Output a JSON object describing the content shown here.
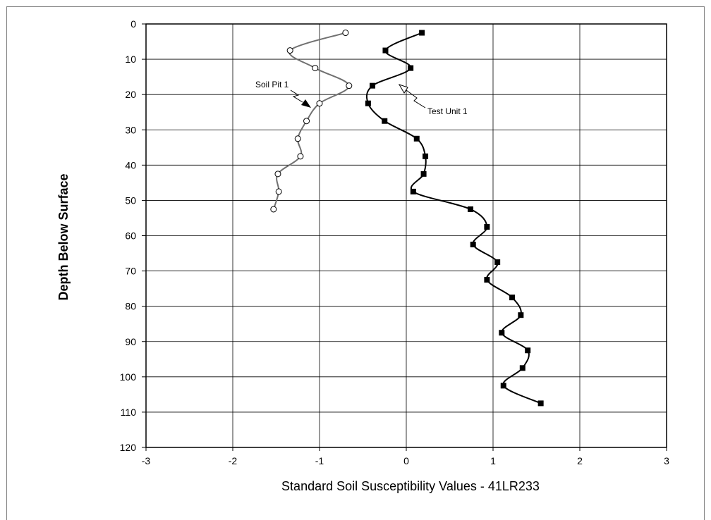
{
  "chart_data": {
    "type": "line",
    "title": "",
    "xlabel": "Standard Soil Susceptibility Values - 41LR233",
    "ylabel": "Depth Below Surface",
    "xlim": [
      -3,
      3
    ],
    "ylim": [
      0,
      120
    ],
    "y_inverted": true,
    "x_ticks": [
      "-3",
      "-2",
      "-1",
      "0",
      "1",
      "2",
      "3"
    ],
    "y_ticks": [
      "0",
      "10",
      "20",
      "30",
      "40",
      "50",
      "60",
      "70",
      "80",
      "90",
      "100",
      "110",
      "120"
    ],
    "grid": true,
    "legend": "none",
    "series": [
      {
        "name": "Soil Pit 1",
        "color": "#707070",
        "marker": "open-circle",
        "points": [
          [
            -0.7,
            2.5
          ],
          [
            -1.34,
            7.5
          ],
          [
            -1.05,
            12.5
          ],
          [
            -0.66,
            17.5
          ],
          [
            -1.0,
            22.5
          ],
          [
            -1.15,
            27.5
          ],
          [
            -1.25,
            32.5
          ],
          [
            -1.22,
            37.5
          ],
          [
            -1.48,
            42.5
          ],
          [
            -1.47,
            47.5
          ],
          [
            -1.53,
            52.5
          ]
        ]
      },
      {
        "name": "Test Unit 1",
        "color": "#000000",
        "marker": "filled-square",
        "points": [
          [
            0.18,
            2.5
          ],
          [
            -0.24,
            7.5
          ],
          [
            0.05,
            12.5
          ],
          [
            -0.39,
            17.5
          ],
          [
            -0.44,
            22.5
          ],
          [
            -0.25,
            27.5
          ],
          [
            0.12,
            32.5
          ],
          [
            0.22,
            37.5
          ],
          [
            0.2,
            42.5
          ],
          [
            0.08,
            47.5
          ],
          [
            0.74,
            52.5
          ],
          [
            0.93,
            57.5
          ],
          [
            0.77,
            62.5
          ],
          [
            1.05,
            67.5
          ],
          [
            0.93,
            72.5
          ],
          [
            1.22,
            77.5
          ],
          [
            1.32,
            82.5
          ],
          [
            1.1,
            87.5
          ],
          [
            1.4,
            92.5
          ],
          [
            1.34,
            97.5
          ],
          [
            1.12,
            102.5
          ],
          [
            1.55,
            107.5
          ]
        ]
      }
    ],
    "annotations": [
      {
        "text": "Soil Pit 1",
        "series": "Soil Pit 1"
      },
      {
        "text": "Test Unit 1",
        "series": "Test Unit 1"
      }
    ]
  }
}
